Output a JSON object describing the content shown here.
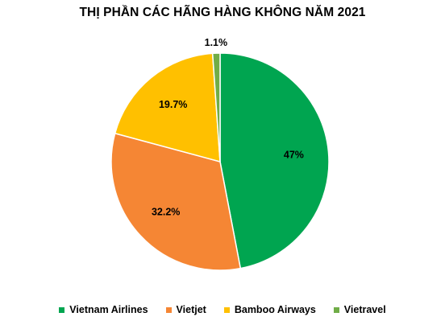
{
  "chart_data": {
    "type": "pie",
    "title": "THỊ PHẦN CÁC HÃNG HÀNG KHÔNG NĂM 2021",
    "legend_position": "bottom",
    "start_angle_deg": 0,
    "direction": "clockwise",
    "slices": [
      {
        "name": "Vietnam Airlines",
        "value": 47,
        "label": "47%",
        "color": "#00A550"
      },
      {
        "name": "Vietjet",
        "value": 32.2,
        "label": "32.2%",
        "color": "#F58634"
      },
      {
        "name": "Bamboo Airways",
        "value": 19.7,
        "label": "19.7%",
        "color": "#FFC000"
      },
      {
        "name": "Vietravel",
        "value": 1.1,
        "label": "1.1%",
        "color": "#70AD47"
      }
    ]
  }
}
